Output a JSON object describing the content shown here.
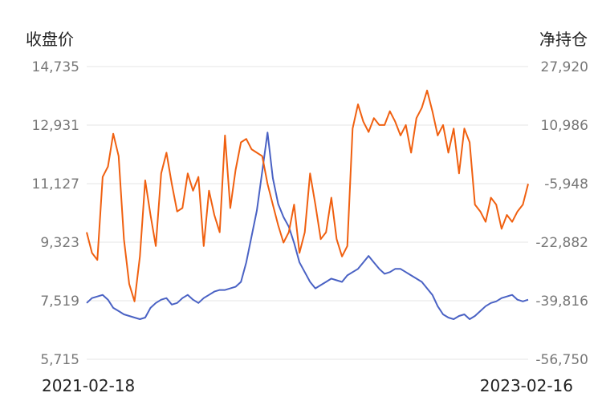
{
  "chart_data": {
    "type": "line",
    "left_axis_title": "收盘价",
    "right_axis_title": "净持仓",
    "x_start_label": "2021-02-18",
    "x_end_label": "2023-02-16",
    "x_range": [
      "2021-02-18",
      "2023-02-16"
    ],
    "left_axis": {
      "min": 5715,
      "max": 14735,
      "ticks": [
        "14,735",
        "12,931",
        "11,127",
        "9,323",
        "7,519",
        "5,715"
      ]
    },
    "right_axis": {
      "min": -56750,
      "max": 27920,
      "ticks": [
        "27,920",
        "10,986",
        "-5,948",
        "-22,882",
        "-39,816",
        "-56,750"
      ]
    },
    "grid": true,
    "legend": "none",
    "series": [
      {
        "axis": "left",
        "color": "#4a62c4",
        "values": [
          7450,
          7600,
          7650,
          7700,
          7550,
          7300,
          7200,
          7100,
          7050,
          7000,
          6950,
          7000,
          7300,
          7450,
          7550,
          7600,
          7400,
          7450,
          7600,
          7700,
          7550,
          7450,
          7600,
          7700,
          7800,
          7850,
          7850,
          7900,
          7950,
          8100,
          8700,
          9500,
          10300,
          11500,
          12700,
          11300,
          10500,
          10100,
          9800,
          9300,
          8700,
          8400,
          8100,
          7900,
          8000,
          8100,
          8200,
          8150,
          8100,
          8300,
          8400,
          8500,
          8700,
          8900,
          8700,
          8500,
          8350,
          8400,
          8500,
          8500,
          8400,
          8300,
          8200,
          8100,
          7900,
          7700,
          7350,
          7100,
          7000,
          6950,
          7050,
          7100,
          6950,
          7050,
          7200,
          7350,
          7450,
          7500,
          7600,
          7650,
          7700,
          7550,
          7500,
          7550
        ]
      },
      {
        "axis": "right",
        "color": "#f06010",
        "values": [
          -20000,
          -26000,
          -28000,
          -4000,
          -1000,
          8500,
          2000,
          -22000,
          -35000,
          -40000,
          -27000,
          -5000,
          -15000,
          -24000,
          -3000,
          3000,
          -6000,
          -14000,
          -13000,
          -3000,
          -8000,
          -4000,
          -24000,
          -8000,
          -15000,
          -20000,
          8000,
          -13000,
          -2000,
          6000,
          7000,
          4000,
          3000,
          2000,
          -6000,
          -12000,
          -18000,
          -23000,
          -20000,
          -12000,
          -26000,
          -20000,
          -3000,
          -12000,
          -22000,
          -20000,
          -10000,
          -22000,
          -27000,
          -24000,
          10000,
          17000,
          12000,
          9000,
          13000,
          11000,
          11000,
          15000,
          12000,
          8000,
          11000,
          3000,
          13000,
          16000,
          21000,
          15000,
          8000,
          11000,
          3000,
          10000,
          -3000,
          10000,
          6000,
          -12000,
          -14000,
          -17000,
          -10000,
          -12000,
          -19000,
          -15000,
          -17000,
          -14000,
          -12000,
          -6000
        ]
      }
    ]
  },
  "colors": {
    "close_price": "#4a62c4",
    "net_position": "#f06010",
    "grid": "#e6e6e6"
  }
}
